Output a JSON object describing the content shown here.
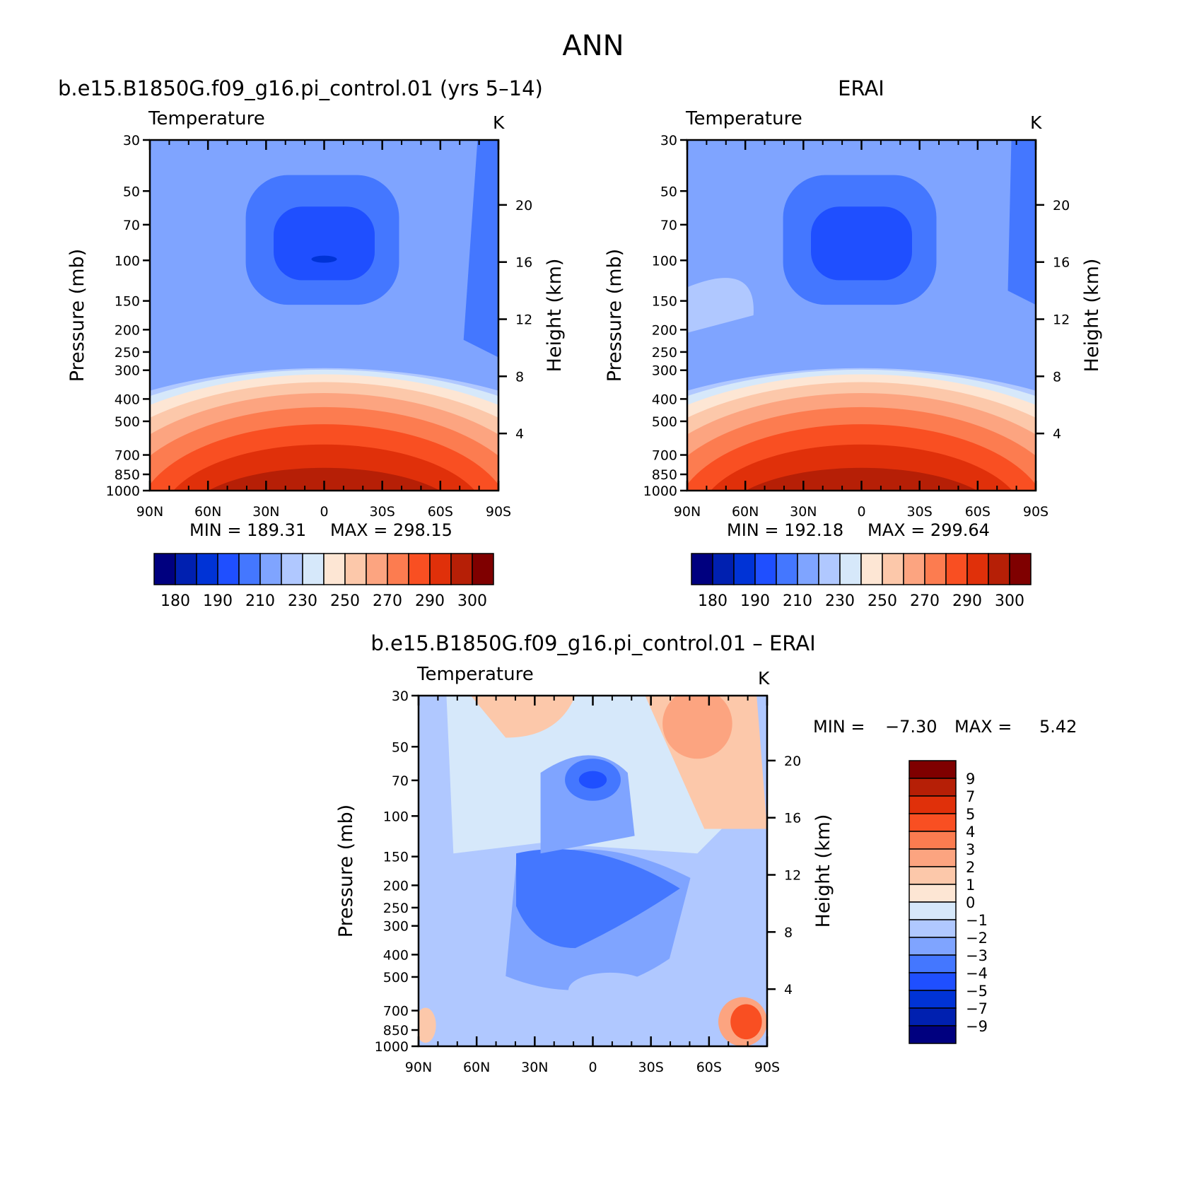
{
  "page_title": "ANN",
  "colors": {
    "abs_palette": [
      "#00007f",
      "#0020b0",
      "#0033d6",
      "#1f4fff",
      "#4477ff",
      "#7fa4ff",
      "#b0c8ff",
      "#d6e8fa",
      "#fde6d4",
      "#fcc8aa",
      "#fca480",
      "#fc7c50",
      "#f94f22",
      "#e0300a",
      "#b61f06",
      "#7f0000"
    ],
    "diff_palette": [
      "#00007f",
      "#0020b0",
      "#0033d6",
      "#1f4fff",
      "#4477ff",
      "#7fa4ff",
      "#b0c8ff",
      "#d6e8fa",
      "#fde6d4",
      "#fcc8aa",
      "#fca480",
      "#fc7c50",
      "#f94f22",
      "#e0300a",
      "#b61f06",
      "#7f0000"
    ]
  },
  "chart_data": [
    {
      "type": "contour",
      "panel": "model",
      "title": "b.e15.B1850G.f09_g16.pi_control.01 (yrs 5–14)",
      "subtitle": "Temperature",
      "units": "K",
      "ylabel": "Pressure (mb)",
      "y2label": "Height (km)",
      "x_ticks": [
        "90N",
        "60N",
        "30N",
        "0",
        "30S",
        "60S",
        "90S"
      ],
      "y_ticks": [
        30,
        50,
        70,
        100,
        150,
        200,
        250,
        300,
        400,
        500,
        700,
        850,
        1000
      ],
      "y2_ticks": [
        4,
        8,
        12,
        16,
        20
      ],
      "min_label": "MIN = 189.31",
      "max_label": "MAX = 298.15",
      "min": 189.31,
      "max": 298.15,
      "colorbar_labels": [
        "180",
        "190",
        "210",
        "230",
        "250",
        "270",
        "290",
        "300"
      ]
    },
    {
      "type": "contour",
      "panel": "obs",
      "title": "ERAI",
      "subtitle": "Temperature",
      "units": "K",
      "ylabel": "Pressure (mb)",
      "y2label": "Height (km)",
      "x_ticks": [
        "90N",
        "60N",
        "30N",
        "0",
        "30S",
        "60S",
        "90S"
      ],
      "y_ticks": [
        30,
        50,
        70,
        100,
        150,
        200,
        250,
        300,
        400,
        500,
        700,
        850,
        1000
      ],
      "y2_ticks": [
        4,
        8,
        12,
        16,
        20
      ],
      "min_label": "MIN = 192.18",
      "max_label": "MAX = 299.64",
      "min": 192.18,
      "max": 299.64,
      "colorbar_labels": [
        "180",
        "190",
        "210",
        "230",
        "250",
        "270",
        "290",
        "300"
      ]
    },
    {
      "type": "contour",
      "panel": "diff",
      "title": "b.e15.B1850G.f09_g16.pi_control.01 – ERAI",
      "subtitle": "Temperature",
      "units": "K",
      "ylabel": "Pressure (mb)",
      "y2label": "Height (km)",
      "x_ticks": [
        "90N",
        "60N",
        "30N",
        "0",
        "30S",
        "60S",
        "90S"
      ],
      "y_ticks": [
        30,
        50,
        70,
        100,
        150,
        200,
        250,
        300,
        400,
        500,
        700,
        850,
        1000
      ],
      "y2_ticks": [
        4,
        8,
        12,
        16,
        20
      ],
      "min_label": "MIN =",
      "min_value": "−7.30",
      "max_label": "MAX =",
      "max_value": "5.42",
      "min": -7.3,
      "max": 5.42,
      "colorbar_labels": [
        "9",
        "7",
        "5",
        "4",
        "3",
        "2",
        "1",
        "0",
        "−1",
        "−2",
        "−3",
        "−4",
        "−5",
        "−7",
        "−9"
      ]
    }
  ]
}
